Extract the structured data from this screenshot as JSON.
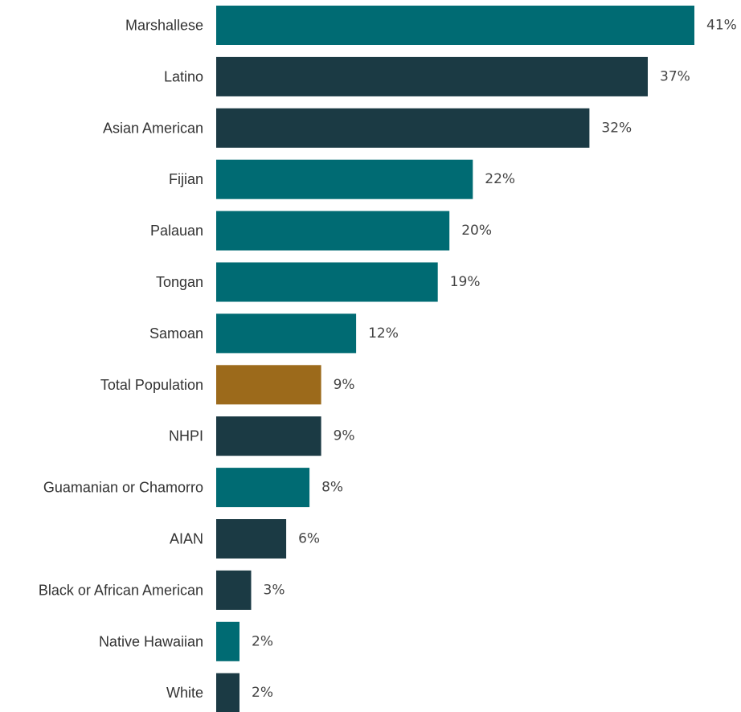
{
  "chart_data": {
    "type": "bar",
    "orientation": "horizontal",
    "title": "",
    "xlabel": "",
    "ylabel": "",
    "value_suffix": "%",
    "xlim": [
      0,
      41
    ],
    "grid": false,
    "legend": "none",
    "categories": [
      "Marshallese",
      "Latino",
      "Asian American",
      "Fijian",
      "Palauan",
      "Tongan",
      "Samoan",
      "Total Population",
      "NHPI",
      "Guamanian or Chamorro",
      "AIAN",
      "Black or African American",
      "Native Hawaiian",
      "White"
    ],
    "values": [
      41,
      37,
      32,
      22,
      20,
      19,
      12,
      9,
      9,
      8,
      6,
      3,
      2,
      2
    ],
    "bar_groups": [
      "nhpi-subgroup",
      "comparison",
      "comparison",
      "nhpi-subgroup",
      "nhpi-subgroup",
      "nhpi-subgroup",
      "nhpi-subgroup",
      "total",
      "comparison",
      "nhpi-subgroup",
      "comparison",
      "comparison",
      "nhpi-subgroup",
      "comparison"
    ],
    "colors": {
      "nhpi-subgroup": "#006b73",
      "comparison": "#1b3a44",
      "total": "#9c6a1b"
    }
  }
}
